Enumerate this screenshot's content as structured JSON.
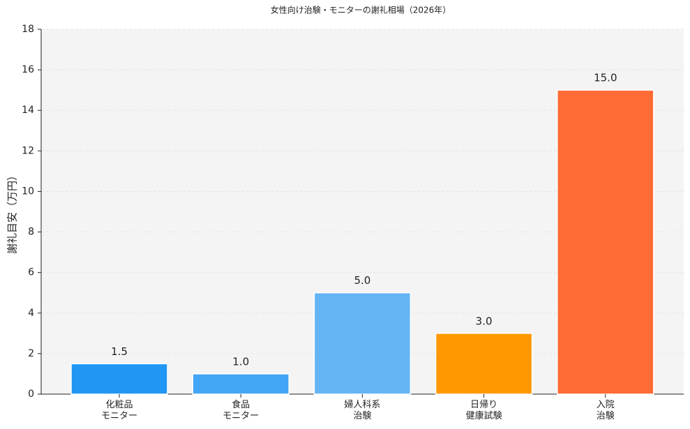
{
  "chart_data": {
    "type": "bar",
    "title": "女性向け治験・モニターの謝礼相場（2026年）",
    "ylabel": "謝礼目安（万円）",
    "categories": [
      "化粧品\nモニター",
      "食品\nモニター",
      "婦人科系\n治験",
      "日帰り\n健康試験",
      "入院\n治験"
    ],
    "values": [
      1.5,
      1.0,
      5.0,
      3.0,
      15.0
    ],
    "value_labels": [
      "1.5",
      "1.0",
      "5.0",
      "3.0",
      "15.0"
    ],
    "colors": [
      "#2196f3",
      "#42a5f5",
      "#64b5f6",
      "#ff9800",
      "#ff6b35"
    ],
    "ylim": [
      0,
      18
    ],
    "yticks": [
      0,
      2,
      4,
      6,
      8,
      10,
      12,
      14,
      16,
      18
    ],
    "grid": true
  }
}
